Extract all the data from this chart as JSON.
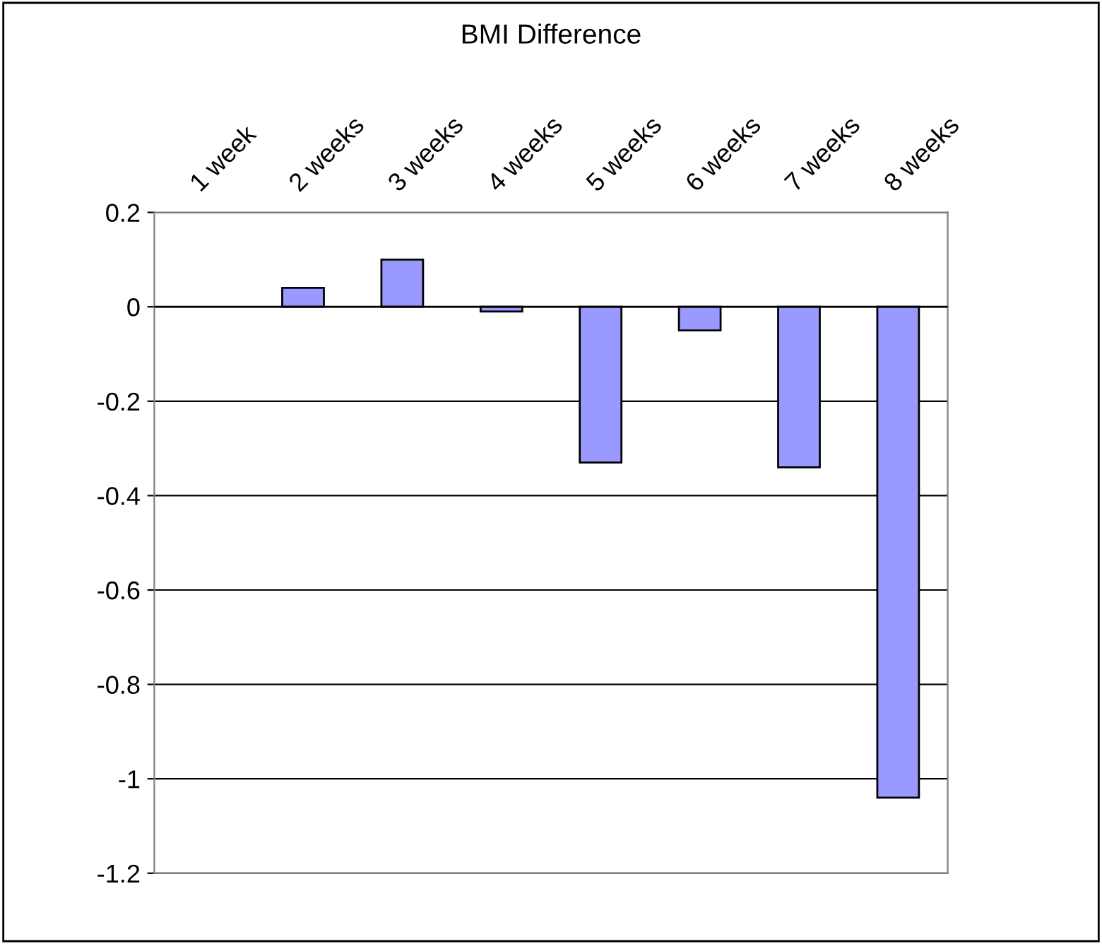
{
  "chart_data": {
    "type": "bar",
    "title": "BMI Difference",
    "categories": [
      "1 week",
      "2 weeks",
      "3 weeks",
      "4 weeks",
      "5 weeks",
      "6 weeks",
      "7 weeks",
      "8 weeks"
    ],
    "values": [
      null,
      0.04,
      0.1,
      -0.01,
      -0.33,
      -0.05,
      -0.34,
      -1.04
    ],
    "color": "#9999ff",
    "ylim": [
      -1.2,
      0.2
    ],
    "yticks": [
      {
        "value": 0.2,
        "label": "0.2"
      },
      {
        "value": 0,
        "label": "0"
      },
      {
        "value": -0.2,
        "label": "-0.2"
      },
      {
        "value": -0.4,
        "label": "-0.4"
      },
      {
        "value": -0.6,
        "label": "-0.6"
      },
      {
        "value": -0.8,
        "label": "-0.8"
      },
      {
        "value": -1,
        "label": "-1"
      },
      {
        "value": -1.2,
        "label": "-1.2"
      }
    ],
    "grid": "y",
    "legend": false
  }
}
